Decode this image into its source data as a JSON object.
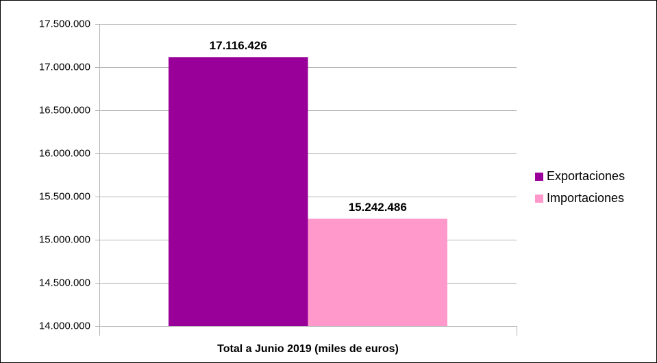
{
  "chart_data": {
    "type": "bar",
    "x_label": "Total a Junio 2019 (miles de euros)",
    "categories": [
      "Total a Junio 2019 (miles de euros)"
    ],
    "series": [
      {
        "name": "Exportaciones",
        "color": "#990099",
        "values": [
          17116426
        ],
        "value_labels": [
          "17.116.426"
        ]
      },
      {
        "name": "Importaciones",
        "color": "#ff99cc",
        "values": [
          15242486
        ],
        "value_labels": [
          "15.242.486"
        ]
      }
    ],
    "ylim": [
      14000000,
      17500000
    ],
    "yticks": [
      {
        "value": 14000000,
        "label": "14.000.000"
      },
      {
        "value": 14500000,
        "label": "14.500.000"
      },
      {
        "value": 15000000,
        "label": "15.000.000"
      },
      {
        "value": 15500000,
        "label": "15.500.000"
      },
      {
        "value": 16000000,
        "label": "16.000.000"
      },
      {
        "value": 16500000,
        "label": "16.500.000"
      },
      {
        "value": 17000000,
        "label": "17.000.000"
      },
      {
        "value": 17500000,
        "label": "17.500.000"
      }
    ],
    "grid": true,
    "legend": "right"
  }
}
